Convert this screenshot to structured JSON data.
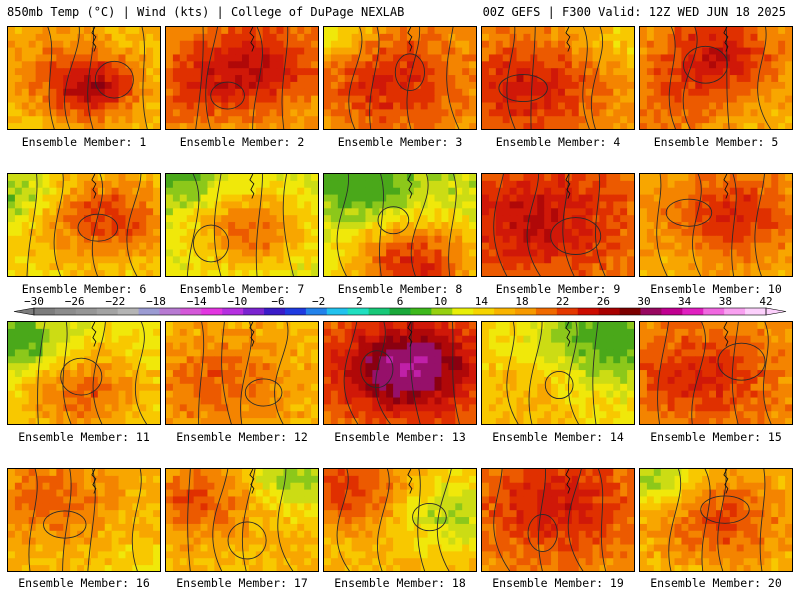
{
  "header": {
    "left": "850mb Temp (°C) | Wind (kts) | College of DuPage NEXLAB",
    "right": "00Z GEFS | F300 Valid: 12Z WED JUN 18 2025"
  },
  "member_label_prefix": "Ensemble Member:",
  "members": [
    {
      "id": 1,
      "label": "Ensemble Member: 1",
      "base": 17,
      "hot": [
        [
          0.55,
          0.6,
          0.3,
          11
        ],
        [
          0.3,
          0.3,
          0.5,
          3
        ]
      ]
    },
    {
      "id": 2,
      "label": "Ensemble Member: 2",
      "base": 19,
      "hot": [
        [
          0.6,
          0.35,
          0.45,
          8
        ],
        [
          0.2,
          0.6,
          0.4,
          4
        ]
      ]
    },
    {
      "id": 3,
      "label": "Ensemble Member: 3",
      "base": 19,
      "hot": [
        [
          0.45,
          0.55,
          0.5,
          7
        ],
        [
          0.05,
          0.1,
          0.25,
          -5
        ]
      ]
    },
    {
      "id": 4,
      "label": "Ensemble Member: 4",
      "base": 19,
      "hot": [
        [
          0.3,
          0.6,
          0.5,
          8
        ],
        [
          0.95,
          0.15,
          0.3,
          -3
        ]
      ]
    },
    {
      "id": 5,
      "label": "Ensemble Member: 5",
      "base": 18,
      "hot": [
        [
          0.5,
          0.3,
          0.45,
          9
        ],
        [
          0.15,
          0.85,
          0.4,
          3
        ]
      ]
    },
    {
      "id": 6,
      "label": "Ensemble Member: 6",
      "base": 16,
      "hot": [
        [
          0.65,
          0.45,
          0.4,
          9
        ],
        [
          0.05,
          0.2,
          0.25,
          -6
        ]
      ]
    },
    {
      "id": 7,
      "label": "Ensemble Member: 7",
      "base": 14,
      "hot": [
        [
          0.55,
          0.55,
          0.35,
          9
        ],
        [
          0.05,
          0.05,
          0.3,
          -5
        ]
      ]
    },
    {
      "id": 8,
      "label": "Ensemble Member: 8",
      "base": 13,
      "hot": [
        [
          0.6,
          0.9,
          0.45,
          13
        ],
        [
          0.25,
          0.1,
          0.35,
          -6
        ]
      ]
    },
    {
      "id": 9,
      "label": "Ensemble Member: 9",
      "base": 21,
      "hot": [
        [
          0.35,
          0.45,
          0.55,
          7
        ]
      ]
    },
    {
      "id": 10,
      "label": "Ensemble Member: 10",
      "base": 18,
      "hot": [
        [
          0.6,
          0.4,
          0.45,
          8
        ]
      ]
    },
    {
      "id": 11,
      "label": "Ensemble Member: 11",
      "base": 15,
      "hot": [
        [
          0.5,
          0.7,
          0.4,
          8
        ],
        [
          0.05,
          0.2,
          0.3,
          -8
        ]
      ]
    },
    {
      "id": 12,
      "label": "Ensemble Member: 12",
      "base": 18,
      "hot": [
        [
          0.35,
          0.6,
          0.45,
          5
        ]
      ]
    },
    {
      "id": 13,
      "label": "Ensemble Member: 13",
      "base": 21,
      "hot": [
        [
          0.55,
          0.45,
          0.45,
          14
        ]
      ]
    },
    {
      "id": 14,
      "label": "Ensemble Member: 14",
      "base": 16,
      "hot": [
        [
          0.85,
          0.15,
          0.45,
          -8
        ],
        [
          0.3,
          0.7,
          0.35,
          3
        ]
      ]
    },
    {
      "id": 15,
      "label": "Ensemble Member: 15",
      "base": 20,
      "hot": [
        [
          0.4,
          0.55,
          0.45,
          6
        ]
      ]
    },
    {
      "id": 16,
      "label": "Ensemble Member: 16",
      "base": 18,
      "hot": [
        [
          0.3,
          0.3,
          0.4,
          5
        ],
        [
          0.9,
          0.9,
          0.3,
          -2
        ]
      ]
    },
    {
      "id": 17,
      "label": "Ensemble Member: 17",
      "base": 18,
      "hot": [
        [
          0.2,
          0.3,
          0.35,
          6
        ],
        [
          0.85,
          0.1,
          0.3,
          -7
        ]
      ]
    },
    {
      "id": 18,
      "label": "Ensemble Member: 18",
      "base": 18,
      "hot": [
        [
          0.15,
          0.2,
          0.35,
          7
        ],
        [
          0.85,
          0.45,
          0.35,
          -6
        ]
      ]
    },
    {
      "id": 19,
      "label": "Ensemble Member: 19",
      "base": 20,
      "hot": [
        [
          0.5,
          0.35,
          0.5,
          7
        ]
      ]
    },
    {
      "id": 20,
      "label": "Ensemble Member: 20",
      "base": 18,
      "hot": [
        [
          0.1,
          0.1,
          0.25,
          -7
        ],
        [
          0.55,
          0.5,
          0.4,
          6
        ]
      ]
    }
  ],
  "colorbar": {
    "labels": [
      "-30",
      "-26",
      "-22",
      "-18",
      "-14",
      "-10",
      "-6",
      "-2",
      "2",
      "6",
      "10",
      "14",
      "18",
      "22",
      "26",
      "30",
      "34",
      "38",
      "42"
    ],
    "colors": [
      "#7d7d7d",
      "#8c8c8c",
      "#969696",
      "#a3a3a3",
      "#b4b4b4",
      "#9b9bd2",
      "#b77ad2",
      "#d458d8",
      "#e236e0",
      "#b530e0",
      "#7a24d0",
      "#3a1cc8",
      "#1f3be0",
      "#2382ea",
      "#22c2ee",
      "#20dfc0",
      "#18c878",
      "#1aa83a",
      "#3db81c",
      "#96d010",
      "#e8ee08",
      "#f6d400",
      "#f9b400",
      "#f79a00",
      "#f06a00",
      "#e43800",
      "#cc0c00",
      "#a80000",
      "#7c0000",
      "#980860",
      "#c00090",
      "#e020c0",
      "#f068e0",
      "#f8a0f0",
      "#fcd0fc"
    ]
  }
}
